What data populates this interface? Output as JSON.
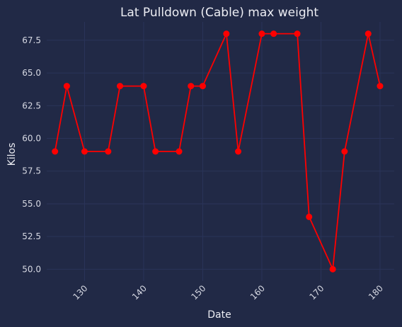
{
  "chart_data": {
    "type": "line",
    "title": "Lat Pulldown (Cable) max weight",
    "xlabel": "Date",
    "ylabel": "Kilos",
    "xlim": [
      123.6,
      182.4
    ],
    "ylim": [
      49.1,
      68.9
    ],
    "x_ticks": [
      130,
      140,
      150,
      160,
      170,
      180
    ],
    "y_ticks": [
      50.0,
      52.5,
      55.0,
      57.5,
      60.0,
      62.5,
      65.0,
      67.5
    ],
    "grid": true,
    "series": [
      {
        "color": "#ff0000",
        "points": [
          {
            "x": 125,
            "y": 59
          },
          {
            "x": 127,
            "y": 64
          },
          {
            "x": 130,
            "y": 59
          },
          {
            "x": 134,
            "y": 59
          },
          {
            "x": 136,
            "y": 64
          },
          {
            "x": 140,
            "y": 64
          },
          {
            "x": 142,
            "y": 59
          },
          {
            "x": 146,
            "y": 59
          },
          {
            "x": 148,
            "y": 64
          },
          {
            "x": 150,
            "y": 64
          },
          {
            "x": 154,
            "y": 68
          },
          {
            "x": 156,
            "y": 59
          },
          {
            "x": 160,
            "y": 68
          },
          {
            "x": 162,
            "y": 68
          },
          {
            "x": 166,
            "y": 68
          },
          {
            "x": 168,
            "y": 54
          },
          {
            "x": 172,
            "y": 50
          },
          {
            "x": 174,
            "y": 59
          },
          {
            "x": 178,
            "y": 68
          },
          {
            "x": 180,
            "y": 64
          }
        ]
      }
    ]
  },
  "colors": {
    "background": "#212946",
    "grid": "#2a3459",
    "text": "#ecedf3"
  }
}
